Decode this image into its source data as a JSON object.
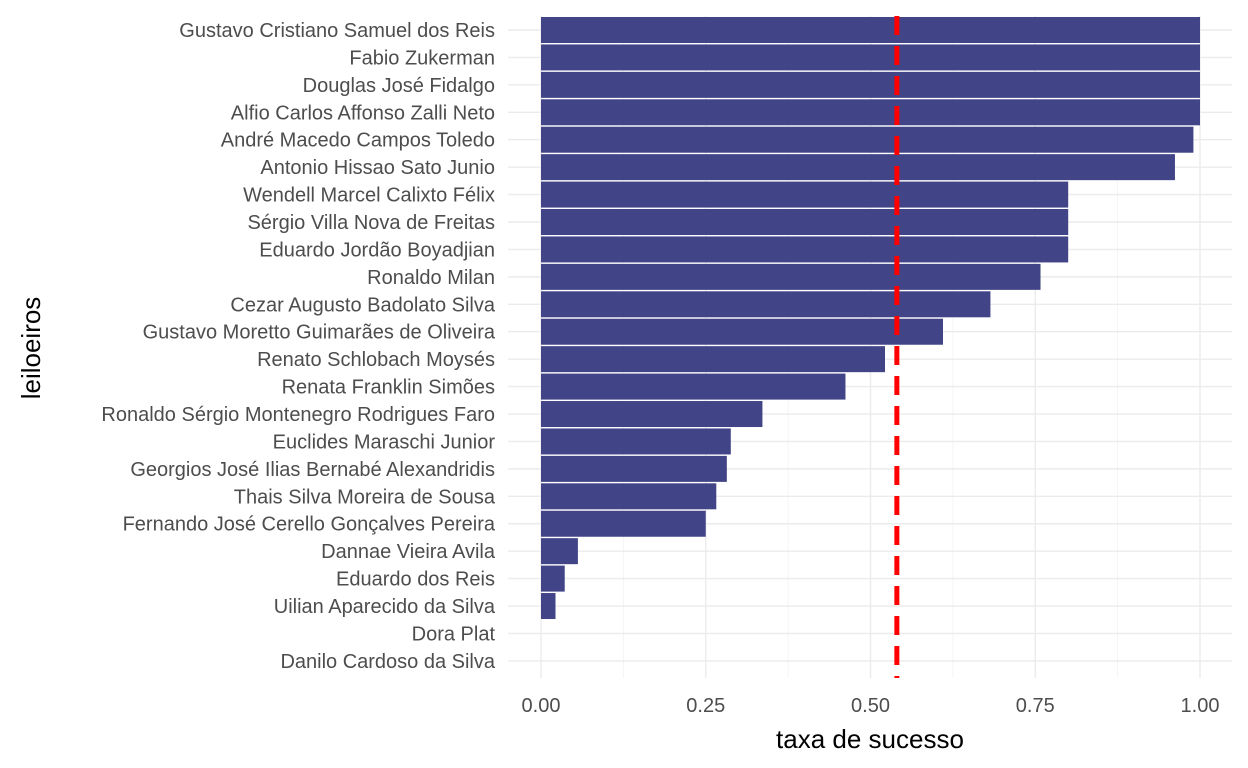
{
  "chart_data": {
    "type": "bar",
    "orientation": "horizontal",
    "xlabel": "taxa de sucesso",
    "ylabel": "leiloeiros",
    "xlim": [
      0,
      1
    ],
    "x_ticks": [
      "0.00",
      "0.25",
      "0.50",
      "0.75",
      "1.00"
    ],
    "x_tick_values": [
      0,
      0.25,
      0.5,
      0.75,
      1.0
    ],
    "grid": true,
    "bar_color": "#414487",
    "reference_line": {
      "value": 0.54,
      "color": "#ff0000",
      "style": "dashed"
    },
    "categories": [
      "Gustavo Cristiano Samuel dos Reis",
      "Fabio Zukerman",
      "Douglas José Fidalgo",
      "Alfio Carlos Affonso Zalli Neto",
      "André Macedo Campos Toledo",
      "Antonio Hissao Sato Junio",
      "Wendell Marcel Calixto Félix",
      "Sérgio Villa Nova de Freitas",
      "Eduardo Jordão Boyadjian",
      "Ronaldo Milan",
      "Cezar Augusto Badolato Silva",
      "Gustavo Moretto Guimarães de Oliveira",
      "Renato Schlobach Moysés",
      "Renata Franklin Simões",
      "Ronaldo Sérgio Montenegro Rodrigues Faro",
      "Euclides Maraschi Junior",
      "Georgios José Ilias Bernabé Alexandridis",
      "Thais Silva Moreira de Sousa",
      "Fernando José Cerello Gonçalves Pereira",
      "Dannae Vieira Avila",
      "Eduardo dos Reis",
      "Uilian Aparecido da Silva",
      "Dora Plat",
      "Danilo Cardoso da Silva"
    ],
    "values": [
      1.0,
      1.0,
      1.0,
      1.0,
      0.99,
      0.962,
      0.8,
      0.8,
      0.8,
      0.758,
      0.682,
      0.61,
      0.522,
      0.462,
      0.336,
      0.288,
      0.282,
      0.266,
      0.25,
      0.056,
      0.036,
      0.022,
      0.0,
      0.0
    ]
  }
}
